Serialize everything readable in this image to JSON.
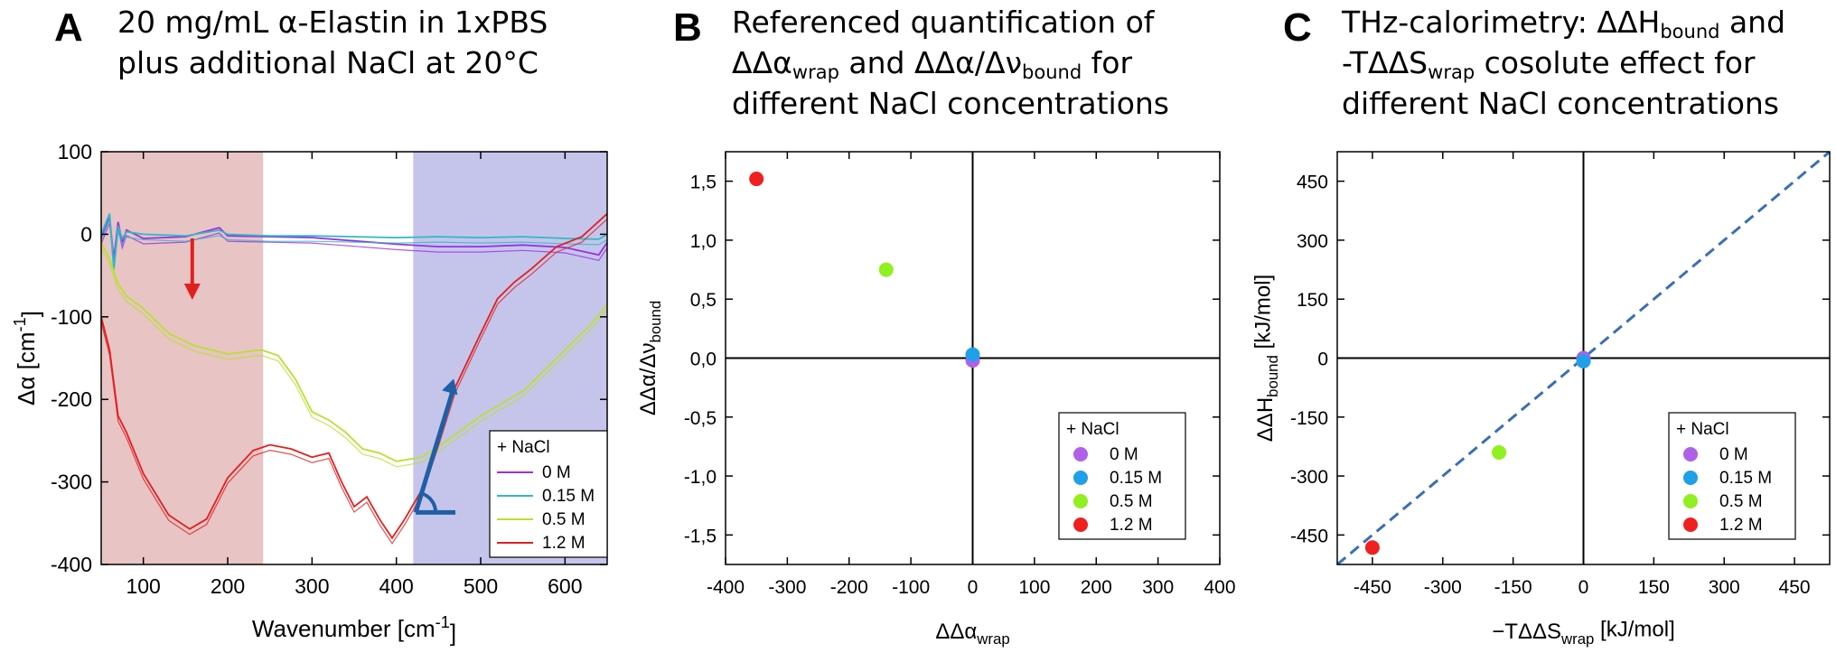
{
  "panels": [
    {
      "letter": "A",
      "title_lines": [
        [
          {
            "t": "20 mg/mL α-Elastin in 1xPBS"
          }
        ],
        [
          {
            "t": "plus additional NaCl at 20°C"
          }
        ]
      ]
    },
    {
      "letter": "B",
      "title_lines": [
        [
          {
            "t": "Referenced quantification of"
          }
        ],
        [
          {
            "t": "ΔΔα"
          },
          {
            "t": "wrap",
            "sub": true
          },
          {
            "t": " and ΔΔα/Δν"
          },
          {
            "t": "bound",
            "sub": true
          },
          {
            "t": " for"
          }
        ],
        [
          {
            "t": "different NaCl concentrations"
          }
        ]
      ]
    },
    {
      "letter": "C",
      "title_lines": [
        [
          {
            "t": "THz-calorimetry: ΔΔH"
          },
          {
            "t": "bound",
            "sub": true
          },
          {
            "t": " and"
          }
        ],
        [
          {
            "t": "-TΔΔS"
          },
          {
            "t": "wrap",
            "sub": true
          },
          {
            "t": " cosolute effect for"
          }
        ],
        [
          {
            "t": "different NaCl concentrations"
          }
        ]
      ]
    }
  ],
  "chart_data": [
    {
      "type": "line",
      "panel": "A",
      "xlabel": "Wavenumber [cm",
      "xlabel_sup": "-1",
      "xlabel_end": "]",
      "ylabel": "Δα [cm",
      "ylabel_sup": "-1",
      "ylabel_end": "]",
      "xlim": [
        50,
        650
      ],
      "ylim": [
        -400,
        100
      ],
      "xticks": [
        100,
        200,
        300,
        400,
        500,
        600
      ],
      "yticks": [
        -400,
        -300,
        -200,
        -100,
        0,
        100
      ],
      "shaded_regions": [
        {
          "x0": 50,
          "x1": 242,
          "color": "#e8c4c4"
        },
        {
          "x0": 420,
          "x1": 650,
          "color": "#c5c5ec"
        }
      ],
      "legend": {
        "title": "+ NaCl",
        "position": "bottom-right"
      },
      "series": [
        {
          "name": "0 M",
          "color": "#9b30e0",
          "points": [
            [
              50,
              -5
            ],
            [
              60,
              20
            ],
            [
              65,
              -30
            ],
            [
              70,
              15
            ],
            [
              75,
              -10
            ],
            [
              80,
              5
            ],
            [
              100,
              -5
            ],
            [
              150,
              -3
            ],
            [
              190,
              8
            ],
            [
              200,
              -2
            ],
            [
              250,
              -3
            ],
            [
              300,
              -4
            ],
            [
              350,
              -8
            ],
            [
              400,
              -12
            ],
            [
              450,
              -15
            ],
            [
              500,
              -15
            ],
            [
              550,
              -13
            ],
            [
              600,
              -16
            ],
            [
              640,
              -25
            ],
            [
              650,
              -10
            ]
          ]
        },
        {
          "name": "0.15 M",
          "color": "#30b8c8",
          "points": [
            [
              50,
              0
            ],
            [
              60,
              25
            ],
            [
              65,
              -40
            ],
            [
              70,
              10
            ],
            [
              75,
              -5
            ],
            [
              80,
              3
            ],
            [
              100,
              0
            ],
            [
              150,
              -2
            ],
            [
              190,
              5
            ],
            [
              200,
              0
            ],
            [
              250,
              -2
            ],
            [
              300,
              -2
            ],
            [
              350,
              -3
            ],
            [
              400,
              -4
            ],
            [
              450,
              -3
            ],
            [
              500,
              -4
            ],
            [
              550,
              -3
            ],
            [
              600,
              -5
            ],
            [
              640,
              -6
            ],
            [
              650,
              0
            ]
          ]
        },
        {
          "name": "0.5 M",
          "color": "#b8e030",
          "points": [
            [
              50,
              -10
            ],
            [
              60,
              -30
            ],
            [
              70,
              -60
            ],
            [
              80,
              -75
            ],
            [
              100,
              -90
            ],
            [
              130,
              -120
            ],
            [
              160,
              -135
            ],
            [
              200,
              -145
            ],
            [
              240,
              -140
            ],
            [
              260,
              -147
            ],
            [
              280,
              -175
            ],
            [
              300,
              -215
            ],
            [
              320,
              -225
            ],
            [
              340,
              -240
            ],
            [
              360,
              -260
            ],
            [
              380,
              -265
            ],
            [
              400,
              -275
            ],
            [
              430,
              -270
            ],
            [
              460,
              -250
            ],
            [
              500,
              -220
            ],
            [
              550,
              -190
            ],
            [
              600,
              -140
            ],
            [
              630,
              -110
            ],
            [
              650,
              -85
            ]
          ]
        },
        {
          "name": "1.2 M",
          "color": "#e02020",
          "points": [
            [
              50,
              -100
            ],
            [
              60,
              -140
            ],
            [
              70,
              -220
            ],
            [
              80,
              -240
            ],
            [
              100,
              -290
            ],
            [
              130,
              -340
            ],
            [
              155,
              -357
            ],
            [
              175,
              -345
            ],
            [
              200,
              -295
            ],
            [
              230,
              -262
            ],
            [
              250,
              -255
            ],
            [
              275,
              -260
            ],
            [
              300,
              -270
            ],
            [
              320,
              -265
            ],
            [
              335,
              -300
            ],
            [
              350,
              -330
            ],
            [
              365,
              -318
            ],
            [
              380,
              -345
            ],
            [
              395,
              -368
            ],
            [
              410,
              -345
            ],
            [
              430,
              -310
            ],
            [
              450,
              -250
            ],
            [
              470,
              -185
            ],
            [
              500,
              -120
            ],
            [
              520,
              -78
            ],
            [
              540,
              -58
            ],
            [
              560,
              -42
            ],
            [
              590,
              -15
            ],
            [
              620,
              -3
            ],
            [
              650,
              25
            ]
          ]
        }
      ],
      "annotations": [
        {
          "kind": "down-arrow",
          "color": "#e02020",
          "x": 158,
          "y0": -5,
          "y1": -75
        },
        {
          "kind": "angle-marker",
          "color": "#1f5fa5",
          "origin": [
            423,
            -337
          ],
          "tip": [
            468,
            -175
          ],
          "end": [
            470,
            -337
          ]
        }
      ]
    },
    {
      "type": "scatter",
      "panel": "B",
      "xlabel": "ΔΔα",
      "xlabel_sub": "wrap",
      "ylabel": "ΔΔα/Δν",
      "ylabel_sub": "bound",
      "xlim": [
        -400,
        400
      ],
      "ylim": [
        -1.75,
        1.75
      ],
      "xticks": [
        -400,
        -300,
        -200,
        -100,
        0,
        100,
        200,
        300,
        400
      ],
      "xtick_labels": [
        "-400",
        "-300",
        "-200",
        "-100",
        "0",
        "100",
        "200",
        "300",
        "400"
      ],
      "yticks": [
        -1.5,
        -1.0,
        -0.5,
        0,
        0.5,
        1.0,
        1.5
      ],
      "ytick_labels": [
        "-1,5",
        "-1,0",
        "-0,5",
        "0,0",
        "0,5",
        "1,0",
        "1,5"
      ],
      "zero_lines": true,
      "legend": {
        "title": "+ NaCl",
        "position": "bottom-right"
      },
      "series": [
        {
          "name": "0 M",
          "color": "#b060e8",
          "x": [
            0
          ],
          "y": [
            -0.02
          ]
        },
        {
          "name": "0.15 M",
          "color": "#1fa0e8",
          "x": [
            0
          ],
          "y": [
            0.03
          ]
        },
        {
          "name": "0.5 M",
          "color": "#90f020",
          "x": [
            -140
          ],
          "y": [
            0.75
          ]
        },
        {
          "name": "1.2 M",
          "color": "#f02020",
          "x": [
            -350
          ],
          "y": [
            1.52
          ]
        }
      ]
    },
    {
      "type": "scatter",
      "panel": "C",
      "xlabel": "−TΔΔS",
      "xlabel_sub": "wrap",
      "xlabel_end": " [kJ/mol]",
      "ylabel": "ΔΔH",
      "ylabel_sub": "bound",
      "ylabel_end": " [kJ/mol]",
      "xlim": [
        -525,
        525
      ],
      "ylim": [
        -525,
        525
      ],
      "xticks": [
        -450,
        -300,
        -150,
        0,
        150,
        300,
        450
      ],
      "xtick_labels": [
        "-450",
        "-300",
        "-150",
        "0",
        "150",
        "300",
        "450"
      ],
      "yticks": [
        -450,
        -300,
        -150,
        0,
        150,
        300,
        450
      ],
      "ytick_labels": [
        "-450",
        "-300",
        "-150",
        "0",
        "150",
        "300",
        "450"
      ],
      "zero_lines": true,
      "diagonal": {
        "color": "#3a6fb5",
        "dash": true
      },
      "legend": {
        "title": "+ NaCl",
        "position": "bottom-right"
      },
      "series": [
        {
          "name": "0 M",
          "color": "#b060e8",
          "x": [
            0
          ],
          "y": [
            0
          ]
        },
        {
          "name": "0.15 M",
          "color": "#1fa0e8",
          "x": [
            0
          ],
          "y": [
            -8
          ]
        },
        {
          "name": "0.5 M",
          "color": "#90f020",
          "x": [
            -180
          ],
          "y": [
            -240
          ]
        },
        {
          "name": "1.2 M",
          "color": "#f02020",
          "x": [
            -450
          ],
          "y": [
            -482
          ]
        }
      ]
    }
  ]
}
